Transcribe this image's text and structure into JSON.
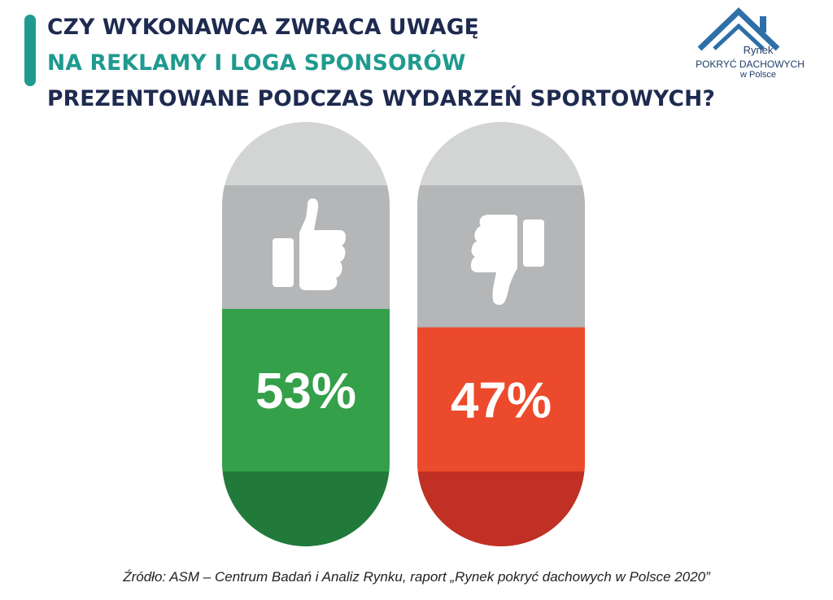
{
  "title": {
    "line1": "CZY WYKONAWCA ZWRACA UWAGĘ",
    "line2": "NA REKLAMY I LOGA SPONSORÓW",
    "line3": "PREZENTOWANE PODCZAS WYDARZEŃ SPORTOWYCH?"
  },
  "logo": {
    "line1": "Rynek",
    "line2": "POKRYĆ DACHOWYCH",
    "line3": "w Polsce"
  },
  "colors": {
    "accent": "#1f9a8e",
    "title_dark": "#1e2a4f",
    "capsule_top": "#d3d4d4",
    "capsule_mid": "#b4b6b7",
    "yes_fill": "#34a04a",
    "yes_bottom": "#217a3a",
    "no_fill": "#ec4a2c",
    "no_bottom": "#c03024"
  },
  "chart_data": {
    "type": "bar",
    "categories": [
      "thumbs-up",
      "thumbs-down"
    ],
    "values": [
      53,
      47
    ],
    "labels": [
      "53%",
      "47%"
    ],
    "ylim": [
      0,
      100
    ]
  },
  "source": "Źródło: ASM – Centrum Badań i Analiz Rynku, raport „Rynek pokryć dachowych w Polsce 2020”"
}
